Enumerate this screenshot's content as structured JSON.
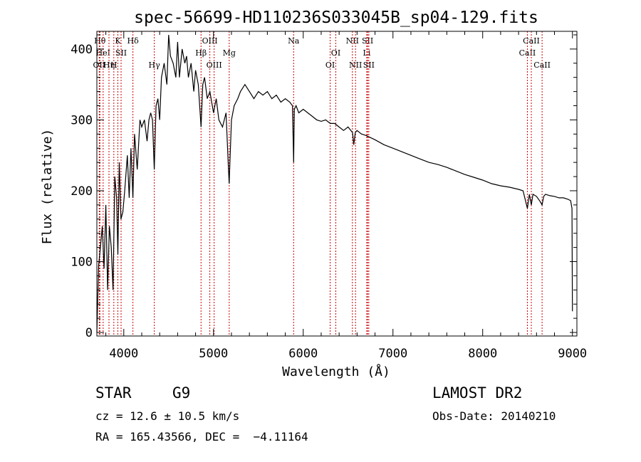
{
  "chart_data": {
    "type": "line",
    "title": "spec-56699-HD110236S033045B_sp04-129.fits",
    "xlabel": "Wavelength (Å)",
    "ylabel": "Flux (relative)",
    "xlim": [
      3700,
      9050
    ],
    "ylim": [
      -5,
      425
    ],
    "x_ticks": [
      4000,
      5000,
      6000,
      7000,
      8000,
      9000
    ],
    "x_tick_labels": [
      "4000",
      "5000",
      "6000",
      "7000",
      "8000",
      "9000"
    ],
    "y_ticks": [
      0,
      100,
      200,
      300,
      400
    ],
    "y_tick_labels": [
      "0",
      "100",
      "200",
      "300",
      "400"
    ],
    "grid": false,
    "series": [
      {
        "x": [
          3700,
          3720,
          3740,
          3760,
          3780,
          3800,
          3820,
          3840,
          3860,
          3880,
          3900,
          3920,
          3934,
          3950,
          3968,
          3990,
          4010,
          4040,
          4060,
          4080,
          4102,
          4120,
          4150,
          4180,
          4200,
          4230,
          4260,
          4280,
          4300,
          4320,
          4340,
          4360,
          4380,
          4400,
          4420,
          4450,
          4480,
          4500,
          4520,
          4550,
          4580,
          4600,
          4620,
          4650,
          4680,
          4700,
          4720,
          4750,
          4780,
          4800,
          4830,
          4861,
          4880,
          4900,
          4930,
          4960,
          5000,
          5030,
          5060,
          5100,
          5140,
          5167,
          5175,
          5183,
          5200,
          5230,
          5270,
          5300,
          5350,
          5400,
          5450,
          5500,
          5550,
          5600,
          5650,
          5700,
          5750,
          5800,
          5850,
          5880,
          5893,
          5900,
          5920,
          5950,
          6000,
          6050,
          6100,
          6150,
          6200,
          6250,
          6300,
          6350,
          6400,
          6450,
          6500,
          6550,
          6563,
          6580,
          6600,
          6650,
          6700,
          6750,
          6800,
          6900,
          7000,
          7100,
          7200,
          7300,
          7400,
          7500,
          7600,
          7700,
          7800,
          7900,
          8000,
          8100,
          8200,
          8300,
          8400,
          8450,
          8498,
          8520,
          8542,
          8560,
          8600,
          8640,
          8662,
          8680,
          8700,
          8750,
          8800,
          8850,
          8900,
          8950,
          8980,
          8995,
          9000
        ],
        "y": [
          0,
          95,
          120,
          150,
          90,
          180,
          60,
          150,
          120,
          60,
          220,
          190,
          110,
          240,
          160,
          170,
          200,
          250,
          190,
          260,
          190,
          280,
          230,
          300,
          290,
          300,
          270,
          300,
          310,
          300,
          230,
          320,
          330,
          300,
          360,
          380,
          350,
          420,
          390,
          380,
          360,
          410,
          360,
          400,
          380,
          390,
          360,
          380,
          340,
          370,
          350,
          290,
          350,
          360,
          330,
          340,
          310,
          330,
          300,
          290,
          310,
          230,
          210,
          240,
          300,
          320,
          330,
          340,
          350,
          340,
          330,
          340,
          335,
          340,
          330,
          335,
          325,
          330,
          325,
          320,
          240,
          315,
          320,
          310,
          315,
          310,
          305,
          300,
          298,
          300,
          295,
          295,
          290,
          285,
          290,
          282,
          265,
          282,
          285,
          280,
          278,
          275,
          272,
          265,
          260,
          255,
          250,
          245,
          240,
          237,
          233,
          228,
          223,
          219,
          215,
          210,
          207,
          205,
          202,
          200,
          175,
          195,
          180,
          195,
          192,
          185,
          180,
          192,
          195,
          193,
          192,
          190,
          190,
          188,
          186,
          175,
          30
        ]
      }
    ],
    "line_markers": [
      {
        "wavelength": 3734,
        "label": "Hθ",
        "row": 0
      },
      {
        "wavelength": 3727,
        "label": "OII",
        "row": 2
      },
      {
        "wavelength": 3770,
        "label": "HeI",
        "row": 1
      },
      {
        "wavelength": 3835,
        "label": "Hη",
        "row": 2
      },
      {
        "wavelength": 3889,
        "label": "H",
        "row": 2
      },
      {
        "wavelength": 3934,
        "label": "K",
        "row": 0
      },
      {
        "wavelength": 3970,
        "label": "SII",
        "row": 1
      },
      {
        "wavelength": 4102,
        "label": "Hδ",
        "row": 0
      },
      {
        "wavelength": 4340,
        "label": "Hγ",
        "row": 2
      },
      {
        "wavelength": 4861,
        "label": "Hβ",
        "row": 1
      },
      {
        "wavelength": 4959,
        "label": "OIII",
        "row": 0
      },
      {
        "wavelength": 5007,
        "label": "OIII",
        "row": 2
      },
      {
        "wavelength": 5175,
        "label": "Mg",
        "row": 1
      },
      {
        "wavelength": 5893,
        "label": "Na",
        "row": 0
      },
      {
        "wavelength": 6300,
        "label": "OI",
        "row": 2
      },
      {
        "wavelength": 6363,
        "label": "OI",
        "row": 1
      },
      {
        "wavelength": 6548,
        "label": "NII",
        "row": 0
      },
      {
        "wavelength": 6583,
        "label": "NII",
        "row": 2
      },
      {
        "wavelength": 6708,
        "label": "Li",
        "row": 1
      },
      {
        "wavelength": 6717,
        "label": "SII",
        "row": 0
      },
      {
        "wavelength": 6731,
        "label": "SII",
        "row": 2
      },
      {
        "wavelength": 8498,
        "label": "CaII",
        "row": 1
      },
      {
        "wavelength": 8542,
        "label": "CaII",
        "row": 0
      },
      {
        "wavelength": 8662,
        "label": "CaII",
        "row": 2
      }
    ],
    "colors": {
      "spectrum": "#000000",
      "marker_line": "#cc0000",
      "frame": "#000000"
    }
  },
  "info": {
    "class_label": "STAR",
    "subclass": "G9",
    "survey": "LAMOST DR2",
    "cz": "cz = 12.6 ± 10.5 km/s",
    "obs_date": "Obs-Date: 20140210",
    "coords": "RA = 165.43566, DEC =  −4.11164"
  }
}
